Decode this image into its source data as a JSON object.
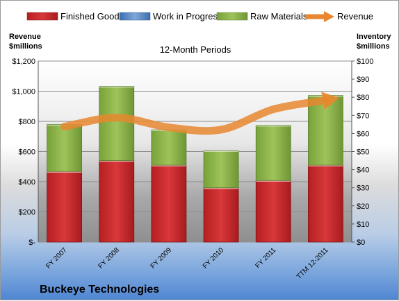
{
  "chart_data": {
    "type": "bar",
    "title": "12-Month Periods",
    "company": "Buckeye Technologies",
    "categories": [
      "FY 2007",
      "FY 2008",
      "FY 2009",
      "FY 2010",
      "FY 2011",
      "TTM 12-2011"
    ],
    "series": [
      {
        "name": "Finished Goods",
        "axis": "right",
        "stacked": true,
        "color": "#c0292b",
        "values": [
          39,
          45,
          42.5,
          30,
          34,
          42.5
        ]
      },
      {
        "name": "Work in Progress",
        "axis": "right",
        "stacked": true,
        "color": "#4f81bd",
        "values": [
          0,
          0,
          0,
          0,
          0,
          0
        ]
      },
      {
        "name": "Raw Materials",
        "axis": "right",
        "stacked": true,
        "color": "#8cb043",
        "values": [
          26,
          41,
          19.5,
          20.5,
          30.5,
          38.5
        ]
      },
      {
        "name": "Revenue",
        "axis": "left",
        "type": "line",
        "color": "#e8872f",
        "values": [
          765,
          825,
          760,
          745,
          880,
          940
        ]
      }
    ],
    "left_axis": {
      "label_line1": "Revenue",
      "label_line2": "$millions",
      "min": 0,
      "max": 1200,
      "step": 200,
      "tick_labels": [
        "$-",
        "$200",
        "$400",
        "$600",
        "$800",
        "$1,000",
        "$1,200"
      ]
    },
    "right_axis": {
      "label_line1": "Inventory",
      "label_line2": "$millions",
      "min": 0,
      "max": 100,
      "step": 10,
      "tick_labels": [
        "$0",
        "$10",
        "$20",
        "$30",
        "$40",
        "$50",
        "$60",
        "$70",
        "$80",
        "$90",
        "$100"
      ]
    },
    "grid": true,
    "legend_position": "top"
  }
}
